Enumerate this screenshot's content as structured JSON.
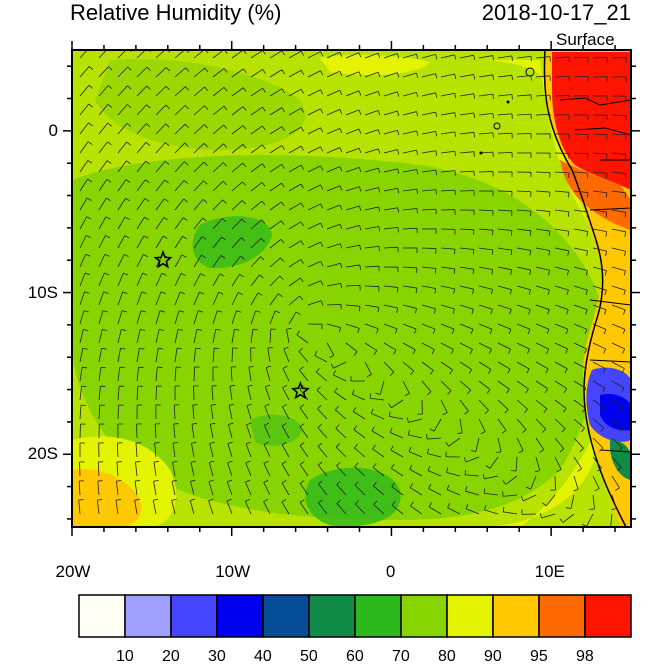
{
  "title": "Relative Humidity (%)",
  "datetime": "2018-10-17_21",
  "level": "Surface",
  "lon_ticks": [
    {
      "lon": -20,
      "label": "20W"
    },
    {
      "lon": -10,
      "label": "10W"
    },
    {
      "lon": 0,
      "label": "0"
    },
    {
      "lon": 10,
      "label": "10E"
    }
  ],
  "lat_ticks": [
    {
      "lat": 0,
      "label": "0"
    },
    {
      "lat": -10,
      "label": "10S"
    },
    {
      "lat": -20,
      "label": "20S"
    }
  ],
  "extent": {
    "lon_min": -20,
    "lon_max": 15,
    "lat_min": -24.5,
    "lat_max": 5
  },
  "markers": [
    {
      "name": "star-marker",
      "lon": -14.3,
      "lat": -8.0
    },
    {
      "name": "star-marker",
      "lon": -5.7,
      "lat": -16.1
    }
  ],
  "colorbar": {
    "levels": [
      "10",
      "20",
      "30",
      "40",
      "50",
      "60",
      "70",
      "80",
      "90",
      "95",
      "98"
    ],
    "colors": [
      "#fffff6",
      "#a0a0ff",
      "#4545ff",
      "#0000f0",
      "#064c96",
      "#108c48",
      "#2db81e",
      "#88d400",
      "#e4f400",
      "#ffc800",
      "#ff6a00",
      "#ff1400"
    ]
  }
}
